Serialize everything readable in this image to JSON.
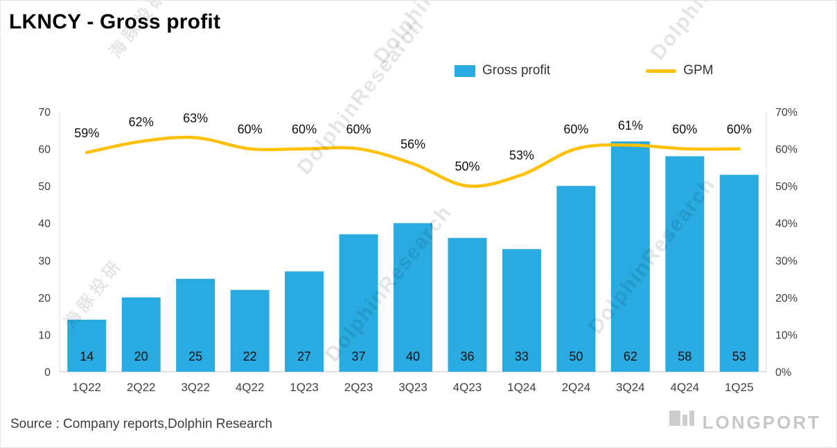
{
  "page": {
    "title": "LKNCY - Gross profit",
    "source": "Source : Company reports,Dolphin Research",
    "brand": "LONGPORT",
    "watermarks": [
      "海豚投研",
      "DolphinResearch"
    ]
  },
  "colors": {
    "bar": "#29ABE2",
    "line": "#FFC000",
    "axis_text": "#404040",
    "axis_line": "#d9d9d9"
  },
  "chart_data": {
    "type": "bar",
    "title": "LKNCY - Gross profit",
    "categories": [
      "1Q22",
      "2Q22",
      "3Q22",
      "4Q22",
      "1Q23",
      "2Q23",
      "3Q23",
      "4Q23",
      "1Q24",
      "2Q24",
      "3Q24",
      "4Q24",
      "1Q25"
    ],
    "series": [
      {
        "name": "Gross profit",
        "type": "bar",
        "color": "#29ABE2",
        "values": [
          14,
          20,
          25,
          22,
          27,
          37,
          40,
          36,
          33,
          50,
          62,
          58,
          53
        ]
      },
      {
        "name": "GPM",
        "type": "line",
        "color": "#FFC000",
        "values": [
          59,
          62,
          63,
          60,
          60,
          60,
          56,
          50,
          53,
          60,
          61,
          60,
          60
        ],
        "labels": [
          "59%",
          "62%",
          "63%",
          "60%",
          "60%",
          "60%",
          "56%",
          "50%",
          "53%",
          "60%",
          "61%",
          "60%",
          "60%"
        ]
      }
    ],
    "left_axis": {
      "min": 0,
      "max": 70,
      "step": 10,
      "ticks": [
        "0",
        "10",
        "20",
        "30",
        "40",
        "50",
        "60",
        "70"
      ]
    },
    "right_axis": {
      "min": 0,
      "max": 70,
      "step": 10,
      "ticks": [
        "0%",
        "10%",
        "20%",
        "30%",
        "40%",
        "50%",
        "60%",
        "70%"
      ]
    },
    "legend_position": "top",
    "grid": false
  }
}
